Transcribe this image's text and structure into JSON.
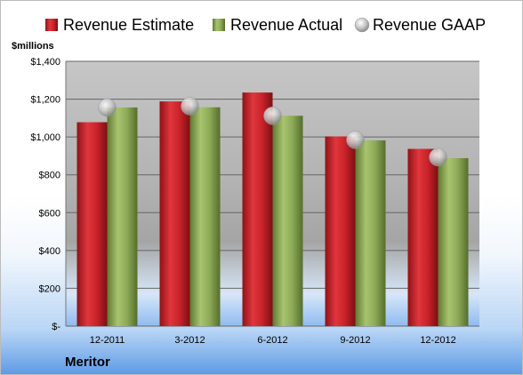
{
  "chart_data": {
    "type": "bar",
    "title": "",
    "unit_label": "$millions",
    "company": "Meritor",
    "categories": [
      "12-2011",
      "3-2012",
      "6-2012",
      "9-2012",
      "12-2012"
    ],
    "series": [
      {
        "name": "Revenue Estimate",
        "kind": "bar",
        "color": "#c0272d",
        "values": [
          1078,
          1188,
          1235,
          1003,
          937
        ]
      },
      {
        "name": "Revenue Actual",
        "kind": "bar",
        "color": "#8fac5b",
        "values": [
          1156,
          1157,
          1112,
          982,
          888
        ]
      },
      {
        "name": "Revenue GAAP",
        "kind": "marker",
        "color": "#c8c8c8",
        "values": [
          1156,
          1163,
          1112,
          985,
          893
        ]
      }
    ],
    "ylim": [
      0,
      1400
    ],
    "yticks": [
      0,
      200,
      400,
      600,
      800,
      1000,
      1200,
      1400
    ],
    "yticklabels": [
      "$-",
      "$200",
      "$400",
      "$600",
      "$800",
      "$1,000",
      "$1,200",
      "$1,400"
    ],
    "grid": true,
    "legend_position": "top"
  }
}
